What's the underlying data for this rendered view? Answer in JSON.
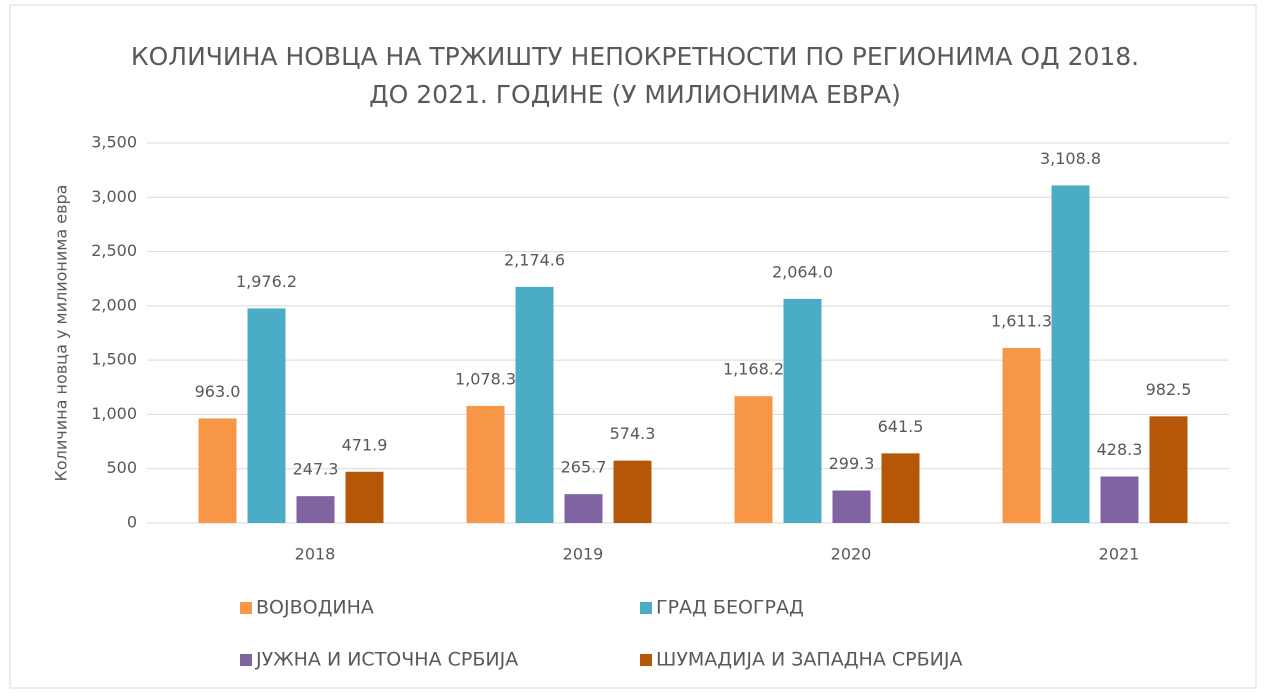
{
  "chart_data": {
    "type": "bar",
    "title": "КОЛИЧИНА НОВЦА НА ТРЖИШТУ НЕПОКРЕТНОСТИ ПО РЕГИОНИМА ОД 2018. ДО 2021. ГОДИНЕ (У МИЛИОНИМА ЕВРА)",
    "y_label": "Количина новца у милионима евра",
    "categories": [
      "2018",
      "2019",
      "2020",
      "2021"
    ],
    "series": [
      {
        "name": "ВОЈВОДИНА",
        "color": "#f79646",
        "values": [
          963.0,
          1078.3,
          1168.2,
          1611.3
        ],
        "value_labels": [
          "963.0",
          "1,078.3",
          "1,168.2",
          "1,611.3"
        ]
      },
      {
        "name": "ГРАД БЕОГРАД",
        "color": "#4bacc6",
        "values": [
          1976.2,
          2174.6,
          2064.0,
          3108.8
        ],
        "value_labels": [
          "1,976.2",
          "2,174.6",
          "2,064.0",
          "3,108.8"
        ]
      },
      {
        "name": "ЈУЖНА И ИСТОЧНА СРБИЈА",
        "color": "#8064a2",
        "values": [
          247.3,
          265.7,
          299.3,
          428.3
        ],
        "value_labels": [
          "247.3",
          "265.7",
          "299.3",
          "428.3"
        ]
      },
      {
        "name": "ШУМАДИЈА И ЗАПАДНА СРБИЈА",
        "color": "#b65708",
        "values": [
          471.9,
          574.3,
          641.5,
          982.5
        ],
        "value_labels": [
          "471.9",
          "574.3",
          "641.5",
          "982.5"
        ]
      }
    ],
    "ylim": [
      0,
      3500
    ],
    "yticks": [
      0,
      500,
      {
        "value": 1000,
        "label": "1,000"
      },
      {
        "value": 1500,
        "label": "1,500"
      },
      {
        "value": 2000,
        "label": "2,000"
      },
      {
        "value": 2500,
        "label": "2,500"
      },
      {
        "value": 3000,
        "label": "3,000"
      },
      {
        "value": 3500,
        "label": "3,500"
      }
    ],
    "grid": true
  }
}
